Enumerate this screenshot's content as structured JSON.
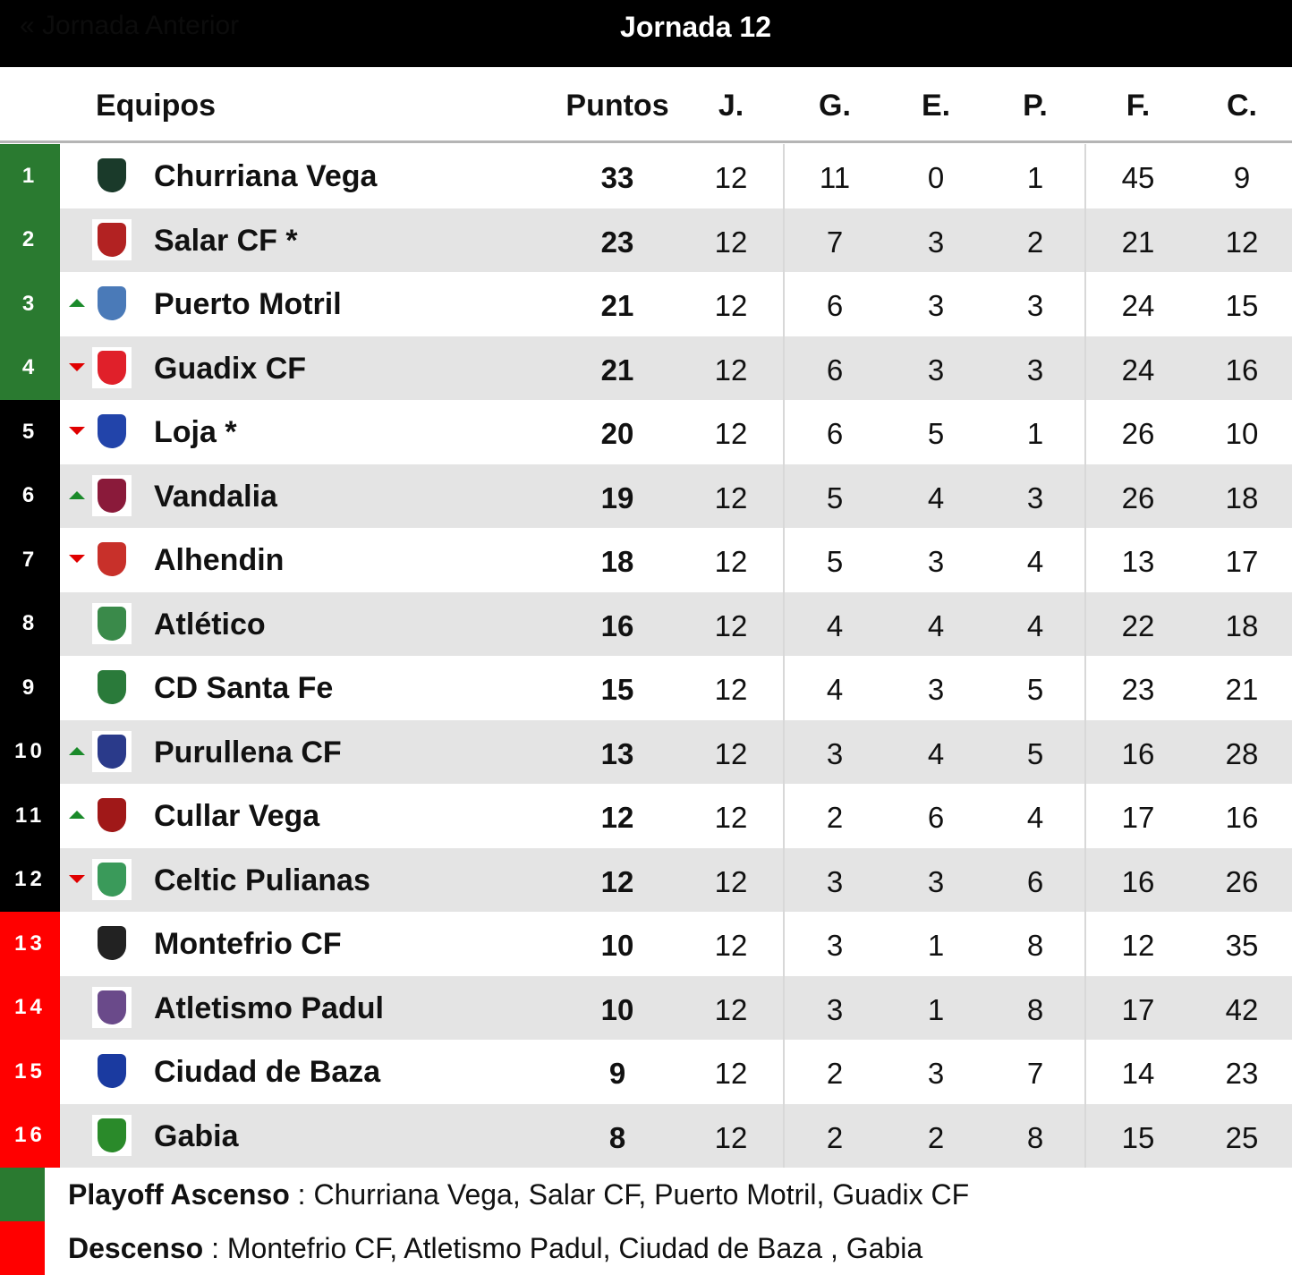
{
  "header": {
    "prev_link": "« Jornada Anterior",
    "title": "Jornada 12"
  },
  "columns": {
    "team": "Equipos",
    "points": "Puntos",
    "played": "J.",
    "won": "G.",
    "drawn": "E.",
    "lost": "P.",
    "goals_for": "F.",
    "goals_against": "C."
  },
  "colors": {
    "playoff": "#2a7a30",
    "neutral": "#000000",
    "relegation": "#ff0000",
    "trend_up": "#1a8a2a",
    "trend_down": "#e00000"
  },
  "rows": [
    {
      "pos": "1",
      "zone": "playoff",
      "trend": "",
      "team": "Churriana Vega",
      "logo": "#1a3a2a",
      "pts": "33",
      "j": "12",
      "g": "11",
      "e": "0",
      "p": "1",
      "f": "45",
      "c": "9"
    },
    {
      "pos": "2",
      "zone": "playoff",
      "trend": "",
      "team": "Salar CF *",
      "logo": "#b22222",
      "pts": "23",
      "j": "12",
      "g": "7",
      "e": "3",
      "p": "2",
      "f": "21",
      "c": "12"
    },
    {
      "pos": "3",
      "zone": "playoff",
      "trend": "up",
      "team": "Puerto Motril",
      "logo": "#4a7ab8",
      "pts": "21",
      "j": "12",
      "g": "6",
      "e": "3",
      "p": "3",
      "f": "24",
      "c": "15"
    },
    {
      "pos": "4",
      "zone": "playoff",
      "trend": "down",
      "team": "Guadix CF",
      "logo": "#e0202a",
      "pts": "21",
      "j": "12",
      "g": "6",
      "e": "3",
      "p": "3",
      "f": "24",
      "c": "16"
    },
    {
      "pos": "5",
      "zone": "neutral",
      "trend": "down",
      "team": "Loja *",
      "logo": "#2244aa",
      "pts": "20",
      "j": "12",
      "g": "6",
      "e": "5",
      "p": "1",
      "f": "26",
      "c": "10"
    },
    {
      "pos": "6",
      "zone": "neutral",
      "trend": "up",
      "team": "Vandalia",
      "logo": "#8a1a3a",
      "pts": "19",
      "j": "12",
      "g": "5",
      "e": "4",
      "p": "3",
      "f": "26",
      "c": "18"
    },
    {
      "pos": "7",
      "zone": "neutral",
      "trend": "down",
      "team": "Alhendin",
      "logo": "#c8302a",
      "pts": "18",
      "j": "12",
      "g": "5",
      "e": "3",
      "p": "4",
      "f": "13",
      "c": "17"
    },
    {
      "pos": "8",
      "zone": "neutral",
      "trend": "",
      "team": "Atlético",
      "logo": "#3a8a4a",
      "pts": "16",
      "j": "12",
      "g": "4",
      "e": "4",
      "p": "4",
      "f": "22",
      "c": "18"
    },
    {
      "pos": "9",
      "zone": "neutral",
      "trend": "",
      "team": "CD Santa Fe",
      "logo": "#2a7a3a",
      "pts": "15",
      "j": "12",
      "g": "4",
      "e": "3",
      "p": "5",
      "f": "23",
      "c": "21"
    },
    {
      "pos": "10",
      "zone": "neutral",
      "trend": "up",
      "team": "Purullena CF",
      "logo": "#2a3a8a",
      "pts": "13",
      "j": "12",
      "g": "3",
      "e": "4",
      "p": "5",
      "f": "16",
      "c": "28"
    },
    {
      "pos": "11",
      "zone": "neutral",
      "trend": "up",
      "team": "Cullar Vega",
      "logo": "#a01818",
      "pts": "12",
      "j": "12",
      "g": "2",
      "e": "6",
      "p": "4",
      "f": "17",
      "c": "16"
    },
    {
      "pos": "12",
      "zone": "neutral",
      "trend": "down",
      "team": "Celtic Pulianas",
      "logo": "#3a9a5a",
      "pts": "12",
      "j": "12",
      "g": "3",
      "e": "3",
      "p": "6",
      "f": "16",
      "c": "26"
    },
    {
      "pos": "13",
      "zone": "relegation",
      "trend": "",
      "team": "Montefrio CF",
      "logo": "#222222",
      "pts": "10",
      "j": "12",
      "g": "3",
      "e": "1",
      "p": "8",
      "f": "12",
      "c": "35"
    },
    {
      "pos": "14",
      "zone": "relegation",
      "trend": "",
      "team": "Atletismo Padul",
      "logo": "#6a4a8a",
      "pts": "10",
      "j": "12",
      "g": "3",
      "e": "1",
      "p": "8",
      "f": "17",
      "c": "42"
    },
    {
      "pos": "15",
      "zone": "relegation",
      "trend": "",
      "team": "Ciudad de Baza",
      "logo": "#1a3aa0",
      "pts": "9",
      "j": "12",
      "g": "2",
      "e": "3",
      "p": "7",
      "f": "14",
      "c": "23"
    },
    {
      "pos": "16",
      "zone": "relegation",
      "trend": "",
      "team": "Gabia",
      "logo": "#2a8a2a",
      "pts": "8",
      "j": "12",
      "g": "2",
      "e": "2",
      "p": "8",
      "f": "15",
      "c": "25"
    }
  ],
  "legend": {
    "playoff_label": "Playoff Ascenso",
    "playoff_teams": " : Churriana Vega, Salar CF, Puerto Motril, Guadix CF",
    "relegation_label": "Descenso",
    "relegation_teams": " : Montefrio CF, Atletismo Padul, Ciudad de Baza , Gabia"
  }
}
